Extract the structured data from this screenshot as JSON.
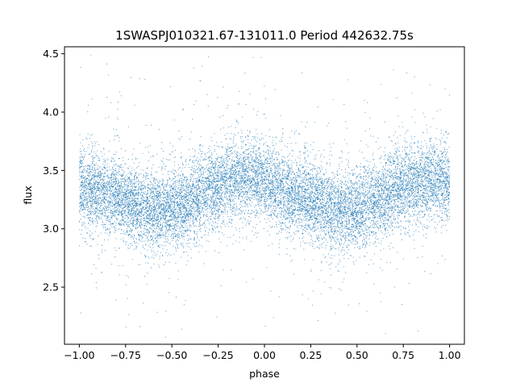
{
  "chart_data": {
    "type": "scatter",
    "title": "1SWASPJ010321.67-131011.0 Period 442632.75s",
    "xlabel": "phase",
    "ylabel": "flux",
    "xlim": [
      -1.08,
      1.08
    ],
    "ylim": [
      2.01,
      4.56
    ],
    "x_ticks": [
      -1.0,
      -0.75,
      -0.5,
      -0.25,
      0.0,
      0.25,
      0.5,
      0.75,
      1.0
    ],
    "x_tick_labels": [
      "−1.00",
      "−0.75",
      "−0.50",
      "−0.25",
      "0.00",
      "0.25",
      "0.50",
      "0.75",
      "1.00"
    ],
    "y_ticks": [
      2.5,
      3.0,
      3.5,
      4.0,
      4.5
    ],
    "y_tick_labels": [
      "2.5",
      "3.0",
      "3.5",
      "4.0",
      "4.5"
    ],
    "grid": false,
    "marker_color": "#1f77b4",
    "series": [
      {
        "phase_range": [
          -1.0,
          1.0
        ],
        "light_curve": {
          "x": [
            -1.0,
            -0.9,
            -0.8,
            -0.7,
            -0.6,
            -0.5,
            -0.4,
            -0.3,
            -0.2,
            -0.1,
            0.0,
            0.1,
            0.2,
            0.3,
            0.4,
            0.5,
            0.6,
            0.7,
            0.8,
            0.9,
            1.0
          ],
          "y": [
            3.35,
            3.32,
            3.27,
            3.2,
            3.16,
            3.17,
            3.22,
            3.35,
            3.4,
            3.45,
            3.4,
            3.33,
            3.27,
            3.2,
            3.15,
            3.16,
            3.23,
            3.35,
            3.38,
            3.42,
            3.38
          ]
        },
        "spread_sd": 0.17,
        "n_points": 14000
      }
    ]
  }
}
